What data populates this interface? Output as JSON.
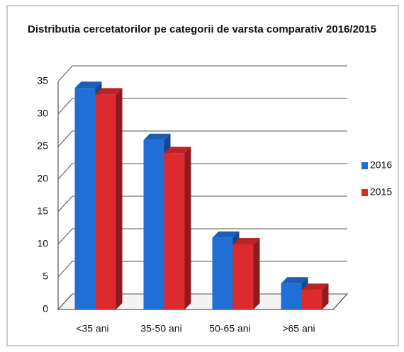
{
  "chart_data": {
    "type": "bar3d",
    "title": "Distributia cercetatorilor pe categorii de varsta comparativ 2016/2015",
    "categories": [
      "<35 ani",
      "35-50 ani",
      "50-65 ani",
      ">65 ani"
    ],
    "series": [
      {
        "name": "2016",
        "color": "#1f6fd6",
        "values": [
          34,
          26,
          11,
          4
        ]
      },
      {
        "name": "2015",
        "color": "#dc2a2e",
        "values": [
          33,
          24,
          10,
          3
        ]
      }
    ],
    "ylim": [
      0,
      35
    ],
    "yticks": [
      0,
      5,
      10,
      15,
      20,
      25,
      30,
      35
    ],
    "grid": true,
    "legend": "right"
  }
}
